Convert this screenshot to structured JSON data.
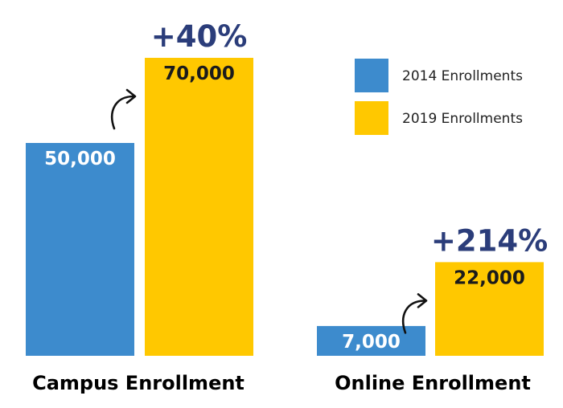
{
  "chart_data": {
    "type": "bar",
    "title": "",
    "xlabel": "",
    "ylabel": "",
    "ylim": [
      0,
      70000
    ],
    "grid": false,
    "legend_position": "top-right",
    "categories": [
      "Campus Enrollment",
      "Online Enrollment"
    ],
    "series": [
      {
        "name": "2014 Enrollments",
        "color": "#3d8bcd",
        "label_color": "#ffffff",
        "values": [
          50000,
          7000
        ],
        "value_labels": [
          "50,000",
          "7,000"
        ]
      },
      {
        "name": "2019 Enrollments",
        "color": "#ffc800",
        "label_color": "#1b1b1b",
        "values": [
          70000,
          22000
        ],
        "value_labels": [
          "70,000",
          "22,000"
        ]
      }
    ],
    "annotations": [
      {
        "category": "Campus Enrollment",
        "text": "+40%",
        "color": "#2b3d7a",
        "icon": "curved-arrow-icon"
      },
      {
        "category": "Online Enrollment",
        "text": "+214%",
        "color": "#2b3d7a",
        "icon": "curved-arrow-icon"
      }
    ]
  }
}
